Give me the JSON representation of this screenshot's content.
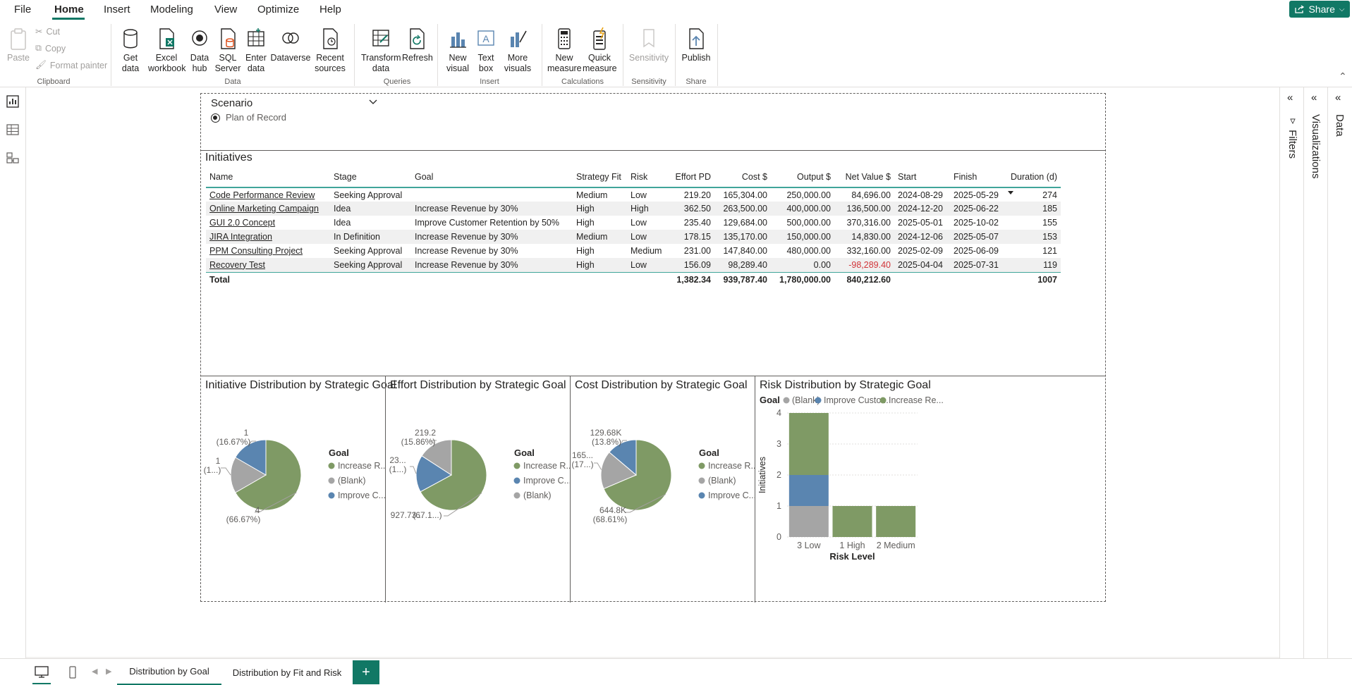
{
  "menu": {
    "items": [
      "File",
      "Home",
      "Insert",
      "Modeling",
      "View",
      "Optimize",
      "Help"
    ],
    "share": "Share"
  },
  "ribbon": {
    "clipboard": {
      "paste": "Paste",
      "cut": "Cut",
      "copy": "Copy",
      "format_painter": "Format painter",
      "label": "Clipboard"
    },
    "data": {
      "get_data": "Get data",
      "excel": "Excel workbook",
      "data_hub": "Data hub",
      "sql": "SQL Server",
      "enter": "Enter data",
      "dataverse": "Dataverse",
      "recent": "Recent sources",
      "label": "Data"
    },
    "queries": {
      "transform": "Transform data",
      "refresh": "Refresh",
      "label": "Queries"
    },
    "insert": {
      "new_visual": "New visual",
      "text_box": "Text box",
      "more_visuals": "More visuals",
      "label": "Insert"
    },
    "calculations": {
      "new_measure": "New measure",
      "quick_measure": "Quick measure",
      "label": "Calculations"
    },
    "sensitivity": {
      "sensitivity": "Sensitivity",
      "label": "Sensitivity"
    },
    "share": {
      "publish": "Publish",
      "label": "Share"
    }
  },
  "slicer": {
    "title": "Scenario",
    "option": "Plan of Record"
  },
  "initiatives": {
    "title": "Initiatives",
    "columns": [
      "Name",
      "Stage",
      "Goal",
      "Strategy Fit",
      "Risk",
      "Effort PD",
      "Cost $",
      "Output $",
      "Net Value $",
      "Start",
      "Finish",
      "Duration (d)"
    ],
    "rows": [
      [
        "Code Performance Review",
        "Seeking Approval",
        "",
        "Medium",
        "Low",
        "219.20",
        "165,304.00",
        "250,000.00",
        "84,696.00",
        "2024-08-29",
        "2025-05-29",
        "274"
      ],
      [
        "Online Marketing Campaign",
        "Idea",
        "Increase Revenue by 30%",
        "High",
        "High",
        "362.50",
        "263,500.00",
        "400,000.00",
        "136,500.00",
        "2024-12-20",
        "2025-06-22",
        "185"
      ],
      [
        "GUI 2.0 Concept",
        "Idea",
        "Improve Customer Retention by 50%",
        "High",
        "Low",
        "235.40",
        "129,684.00",
        "500,000.00",
        "370,316.00",
        "2025-05-01",
        "2025-10-02",
        "155"
      ],
      [
        "JIRA Integration",
        "In Definition",
        "Increase Revenue by 30%",
        "Medium",
        "Low",
        "178.15",
        "135,170.00",
        "150,000.00",
        "14,830.00",
        "2024-12-06",
        "2025-05-07",
        "153"
      ],
      [
        "PPM Consulting Project",
        "Seeking Approval",
        "Increase Revenue by 30%",
        "High",
        "Medium",
        "231.00",
        "147,840.00",
        "480,000.00",
        "332,160.00",
        "2025-02-09",
        "2025-06-09",
        "121"
      ],
      [
        "Recovery Test",
        "Seeking Approval",
        "Increase Revenue by 30%",
        "High",
        "Low",
        "156.09",
        "98,289.40",
        "0.00",
        "-98,289.40",
        "2025-04-04",
        "2025-07-31",
        "119"
      ]
    ],
    "total": [
      "Total",
      "",
      "",
      "",
      "",
      "1,382.34",
      "939,787.40",
      "1,780,000.00",
      "840,212.60",
      "",
      "",
      "1007"
    ]
  },
  "colors": {
    "increase": "#7f9a65",
    "blank": "#a5a5a5",
    "improve": "#5a85b0",
    "accent": "#117865"
  },
  "chart_data": [
    {
      "type": "pie",
      "title": "Initiative Distribution by Strategic Goal",
      "legend_title": "Goal",
      "legend": [
        "Increase R...",
        "(Blank)",
        "Improve C..."
      ],
      "slices": [
        {
          "name": "Increase Revenue by 30%",
          "value": 4,
          "label": "4",
          "pct": "(66.67%)",
          "color": "#7f9a65"
        },
        {
          "name": "(Blank)",
          "value": 1,
          "label": "1",
          "pct": "(1...)",
          "color": "#a5a5a5"
        },
        {
          "name": "Improve Customer Retention by 50%",
          "value": 1,
          "label": "1",
          "pct": "(16.67%)",
          "color": "#5a85b0"
        }
      ]
    },
    {
      "type": "pie",
      "title": "Effort Distribution by Strategic Goal",
      "legend_title": "Goal",
      "legend": [
        "Increase R...",
        "Improve C...",
        "(Blank)"
      ],
      "slices": [
        {
          "name": "Increase Revenue by 30%",
          "value": 927.73,
          "label": "927.73...",
          "pct": "(67.1...)",
          "color": "#7f9a65"
        },
        {
          "name": "Improve Customer Retention by 50%",
          "value": 235.4,
          "label": "23...",
          "pct": "(1...)",
          "color": "#5a85b0"
        },
        {
          "name": "(Blank)",
          "value": 219.2,
          "label": "219.2",
          "pct": "(15.86%)",
          "color": "#a5a5a5"
        }
      ]
    },
    {
      "type": "pie",
      "title": "Cost Distribution by Strategic Goal",
      "legend_title": "Goal",
      "legend": [
        "Increase R...",
        "(Blank)",
        "Improve C..."
      ],
      "slices": [
        {
          "name": "Increase Revenue by 30%",
          "value": 644.8,
          "label": "644.8K",
          "pct": "(68.61%)",
          "color": "#7f9a65"
        },
        {
          "name": "(Blank)",
          "value": 165.3,
          "label": "165...",
          "pct": "(17...)",
          "color": "#a5a5a5"
        },
        {
          "name": "Improve Customer Retention by 50%",
          "value": 129.68,
          "label": "129.68K",
          "pct": "(13.8%)",
          "color": "#5a85b0"
        }
      ]
    },
    {
      "type": "bar",
      "title": "Risk Distribution by Strategic Goal",
      "legend_title": "Goal",
      "legend": [
        "(Blank)",
        "Improve Custo...",
        "Increase Re..."
      ],
      "categories": [
        "3 Low",
        "1 High",
        "2 Medium"
      ],
      "series": [
        {
          "name": "(Blank)",
          "values": [
            1,
            0,
            0
          ],
          "color": "#a5a5a5"
        },
        {
          "name": "Improve Custo...",
          "values": [
            1,
            0,
            0
          ],
          "color": "#5a85b0"
        },
        {
          "name": "Increase Re...",
          "values": [
            2,
            1,
            1
          ],
          "color": "#7f9a65"
        }
      ],
      "xlabel": "Risk Level",
      "ylabel": "Initiatives",
      "ylim": [
        0,
        4
      ],
      "yticks": [
        "0",
        "1",
        "2",
        "3",
        "4"
      ]
    }
  ],
  "panes": {
    "filters": "Filters",
    "visualizations": "Visualizations",
    "data": "Data"
  },
  "tabs": [
    "Distribution by Goal",
    "Distribution by Fit and Risk"
  ],
  "add_tab": "+"
}
